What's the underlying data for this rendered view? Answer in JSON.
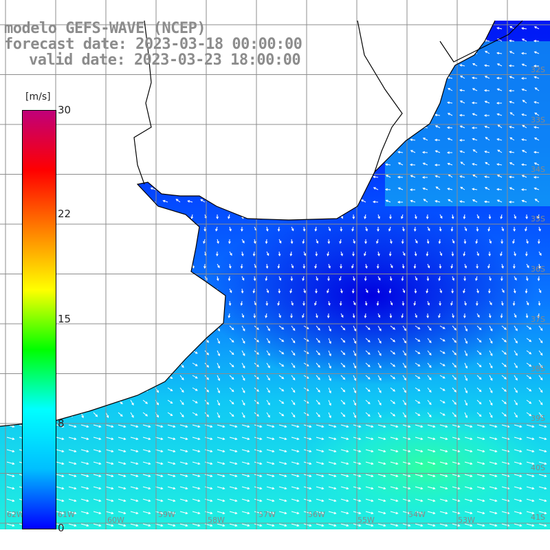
{
  "titles": {
    "line1": "modelo GEFS-WAVE (NCEP)",
    "line2": "forecast date: 2023-03-18 00:00:00",
    "line3": "valid date: 2023-03-23 18:00:00"
  },
  "colorbar": {
    "unit": "[m/s]",
    "ticks": [
      "30",
      "22",
      "15",
      "8",
      "0"
    ],
    "colors": [
      "#0000ff",
      "#00bfff",
      "#00ffff",
      "#00ff00",
      "#ffff00",
      "#ff8000",
      "#ff0000",
      "#c0007a"
    ]
  },
  "lat_labels": [
    "32S",
    "33S",
    "34S",
    "35S",
    "36S",
    "37S",
    "38S",
    "39S",
    "40S",
    "41S"
  ],
  "lon_labels": [
    "62W",
    "61W",
    "60W",
    "59W",
    "58W",
    "57W",
    "56W",
    "55W",
    "54W",
    "53W"
  ],
  "colors": {
    "land": "#ffffff",
    "coast": "#000000",
    "grid": "#8c8c8c",
    "arrow": "#ffffff",
    "title": "#8c8c8c"
  }
}
